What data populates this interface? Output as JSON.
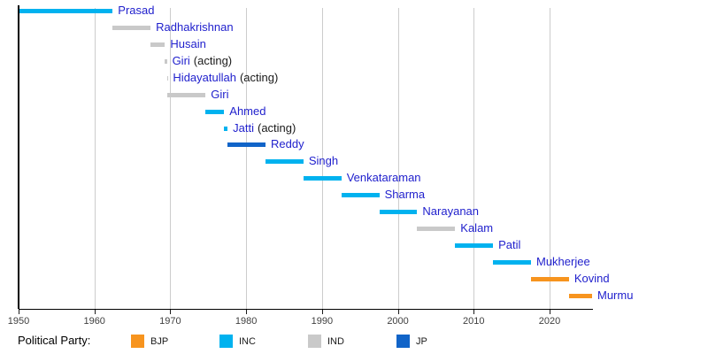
{
  "colors": {
    "background": "#ffffff",
    "link_text": "#2121cd",
    "plain_text": "#1a1a1a",
    "axis": "#000000",
    "gridline": "#cccccc",
    "tick_label": "#404040"
  },
  "chart_data": {
    "type": "timeline",
    "title": "",
    "xlabel": "",
    "ylabel": "",
    "grid": true,
    "x_ticks": [
      1950,
      1960,
      1970,
      1980,
      1990,
      2000,
      2010,
      2020
    ],
    "x_range": [
      1950,
      2025.7
    ],
    "legend_position": "bottom",
    "legend_title": "Political Party:",
    "legend": [
      {
        "label": "BJP",
        "color": "#f7941e"
      },
      {
        "label": "INC",
        "color": "#00b2ef"
      },
      {
        "label": "IND",
        "color": "#c9c9c9"
      },
      {
        "label": "JP",
        "color": "#1164c8"
      }
    ],
    "rows": [
      {
        "name": "Prasad",
        "suffix": "",
        "party": "INC",
        "start": 1950.1,
        "end": 1962.4
      },
      {
        "name": "Radhakrishnan",
        "suffix": "",
        "party": "IND",
        "start": 1962.4,
        "end": 1967.4
      },
      {
        "name": "Husain",
        "suffix": "",
        "party": "IND",
        "start": 1967.4,
        "end": 1969.3
      },
      {
        "name": "Giri",
        "suffix": "(acting)",
        "party": "IND",
        "start": 1969.3,
        "end": 1969.55
      },
      {
        "name": "Hidayatullah",
        "suffix": "(acting)",
        "party": "IND",
        "start": 1969.55,
        "end": 1969.65
      },
      {
        "name": "Giri",
        "suffix": "",
        "party": "IND",
        "start": 1969.65,
        "end": 1974.65
      },
      {
        "name": "Ahmed",
        "suffix": "",
        "party": "INC",
        "start": 1974.65,
        "end": 1977.1
      },
      {
        "name": "Jatti",
        "suffix": "(acting)",
        "party": "INC",
        "start": 1977.1,
        "end": 1977.55
      },
      {
        "name": "Reddy",
        "suffix": "",
        "party": "JP",
        "start": 1977.55,
        "end": 1982.55
      },
      {
        "name": "Singh",
        "suffix": "",
        "party": "INC",
        "start": 1982.55,
        "end": 1987.55
      },
      {
        "name": "Venkataraman",
        "suffix": "",
        "party": "INC",
        "start": 1987.55,
        "end": 1992.55
      },
      {
        "name": "Sharma",
        "suffix": "",
        "party": "INC",
        "start": 1992.55,
        "end": 1997.55
      },
      {
        "name": "Narayanan",
        "suffix": "",
        "party": "INC",
        "start": 1997.55,
        "end": 2002.55
      },
      {
        "name": "Kalam",
        "suffix": "",
        "party": "IND",
        "start": 2002.55,
        "end": 2007.55
      },
      {
        "name": "Patil",
        "suffix": "",
        "party": "INC",
        "start": 2007.55,
        "end": 2012.55
      },
      {
        "name": "Mukherjee",
        "suffix": "",
        "party": "INC",
        "start": 2012.55,
        "end": 2017.55
      },
      {
        "name": "Kovind",
        "suffix": "",
        "party": "BJP",
        "start": 2017.55,
        "end": 2022.55
      },
      {
        "name": "Murmu",
        "suffix": "",
        "party": "BJP",
        "start": 2022.55,
        "end": 2025.6
      }
    ]
  }
}
